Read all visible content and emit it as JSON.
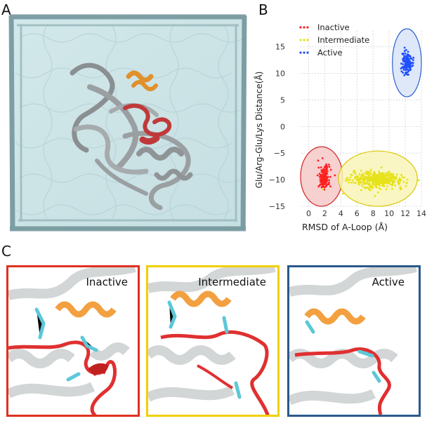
{
  "figure": {
    "panel_letters": [
      "A",
      "B",
      "C"
    ]
  },
  "chart_data": {
    "type": "scatter",
    "xlabel": "RMSD of A-Loop (Å)",
    "ylabel": "Glu/Arg-Glu/Lys Distance(Å)",
    "xlim": [
      -1,
      14
    ],
    "ylim": [
      -15,
      18
    ],
    "xticks": [
      0,
      2,
      4,
      6,
      8,
      10,
      12,
      14
    ],
    "yticks": [
      -15,
      -10,
      -5,
      0,
      5,
      10,
      15
    ],
    "grid": true,
    "legend_placement": "top-left",
    "series": [
      {
        "name": "Inactive",
        "color": "#ff2020",
        "center": [
          1.9,
          -9.6
        ],
        "spread": [
          0.35,
          1.1
        ],
        "count": 170
      },
      {
        "name": "Intermediate",
        "color": "#e6e21a",
        "center": [
          8.6,
          -10.0
        ],
        "spread": [
          1.6,
          0.75
        ],
        "count": 420
      },
      {
        "name": "Active",
        "color": "#2050ff",
        "center": [
          12.2,
          12.0
        ],
        "spread": [
          0.3,
          1.0
        ],
        "count": 150
      }
    ],
    "ellipses": [
      {
        "series": "Inactive",
        "center": [
          1.6,
          -9.4
        ],
        "radii": [
          2.6,
          5.6
        ],
        "fill": "#f6c8c8",
        "stroke": "#d02020"
      },
      {
        "series": "Intermediate",
        "center": [
          8.6,
          -9.8
        ],
        "radii": [
          4.9,
          5.2
        ],
        "fill": "#f8f4b8",
        "stroke": "#d8c800"
      },
      {
        "series": "Active",
        "center": [
          12.2,
          12.0
        ],
        "radii": [
          1.8,
          6.4
        ],
        "fill": "#d8e4f8",
        "stroke": "#3060d0"
      }
    ]
  },
  "panelC": {
    "boxes": [
      {
        "title": "Inactive",
        "color": "#e03020"
      },
      {
        "title": "Intermediate",
        "color": "#f0d000"
      },
      {
        "title": "Active",
        "color": "#2a5a8a"
      }
    ]
  }
}
